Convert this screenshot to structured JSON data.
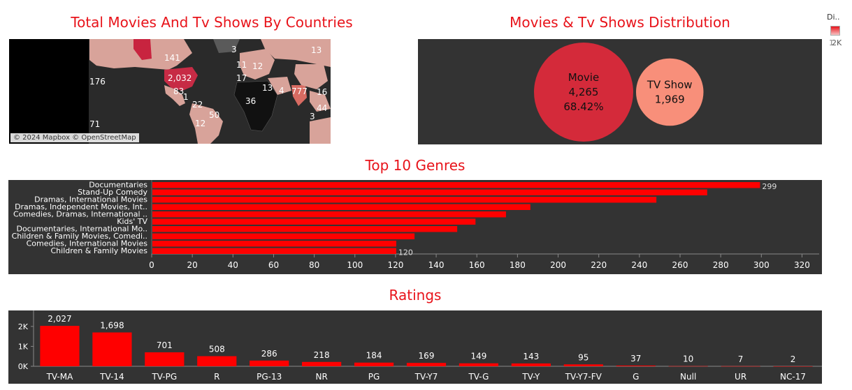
{
  "titles": {
    "map": "Total Movies And Tv Shows By Countries",
    "distribution": "Movies & Tv Shows Distribution",
    "genres": "Top 10 Genres",
    "ratings": "Ratings"
  },
  "legend_mini": {
    "title": "Di..",
    "range_min": "1",
    "range_max": "2K"
  },
  "map": {
    "attribution": "© 2024 Mapbox © OpenStreetMap",
    "labels": [
      "176",
      "141",
      "2,032",
      "83",
      "1",
      "22",
      "12",
      "50",
      "71",
      "13",
      "11",
      "12",
      "17",
      "3",
      "13",
      "4",
      "777",
      "16",
      "44",
      "36",
      "3"
    ]
  },
  "colors": {
    "accent": "#e8131a",
    "panel": "#333333",
    "bar": "#ff0000",
    "movie": "#d42a3a",
    "tv": "#f88f7a"
  },
  "chart_data": [
    {
      "type": "bubble",
      "title": "Movies & Tv Shows Distribution",
      "items": [
        {
          "label": "Movie",
          "value": 4265,
          "value_text": "4,265",
          "percent_text": "68.42%"
        },
        {
          "label": "TV Show",
          "value": 1969,
          "value_text": "1,969"
        }
      ]
    },
    {
      "type": "bar",
      "orientation": "horizontal",
      "title": "Top 10 Genres",
      "categories": [
        "Documentaries",
        "Stand-Up Comedy",
        "Dramas, International Movies",
        "Dramas, Independent Movies, Int..",
        "Comedies, Dramas, International ..",
        "Kids' TV",
        "Documentaries, International Mo..",
        "Children & Family Movies, Comedi..",
        "Comedies, International Movies",
        "Children & Family Movies"
      ],
      "values": [
        299,
        273,
        248,
        186,
        174,
        159,
        150,
        129,
        120,
        120
      ],
      "value_labels": {
        "0": "299",
        "9": "120"
      },
      "xlim": [
        0,
        325
      ],
      "ticks": [
        0,
        20,
        40,
        60,
        80,
        100,
        120,
        140,
        160,
        180,
        200,
        220,
        240,
        260,
        280,
        300,
        320
      ]
    },
    {
      "type": "bar",
      "title": "Ratings",
      "categories": [
        "TV-MA",
        "TV-14",
        "TV-PG",
        "R",
        "PG-13",
        "NR",
        "PG",
        "TV-Y7",
        "TV-G",
        "TV-Y",
        "TV-Y7-FV",
        "G",
        "Null",
        "UR",
        "NC-17"
      ],
      "values": [
        2027,
        1698,
        701,
        508,
        286,
        218,
        184,
        169,
        149,
        143,
        95,
        37,
        10,
        7,
        2
      ],
      "value_labels": [
        "2,027",
        "1,698",
        "701",
        "508",
        "286",
        "218",
        "184",
        "169",
        "149",
        "143",
        "95",
        "37",
        "10",
        "7",
        "2"
      ],
      "ylim": [
        0,
        2800
      ],
      "yticks": [
        {
          "v": 0,
          "label": "0K"
        },
        {
          "v": 1000,
          "label": "1K"
        },
        {
          "v": 2000,
          "label": "2K"
        }
      ]
    }
  ]
}
